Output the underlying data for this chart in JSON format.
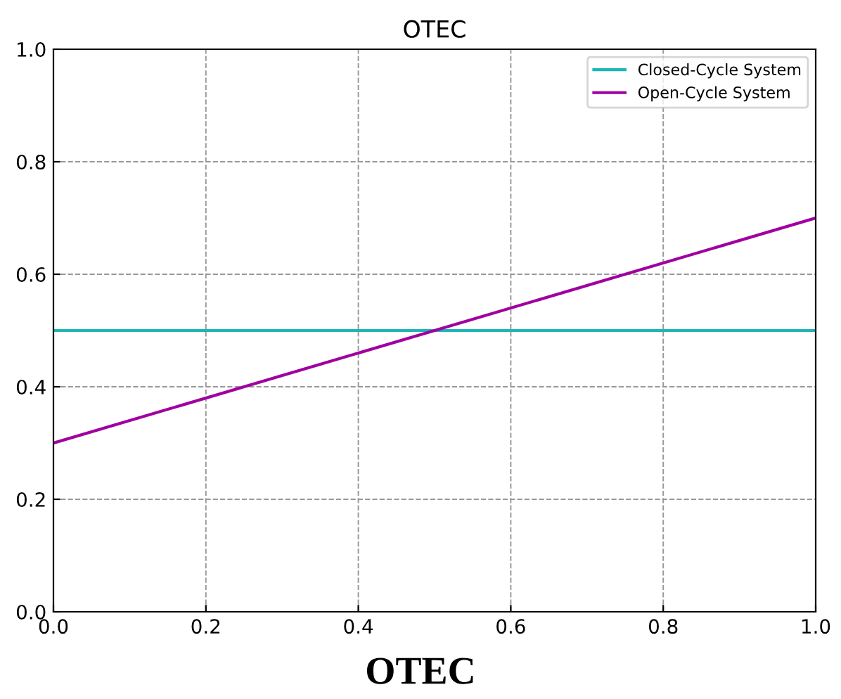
{
  "chart_data": {
    "type": "line",
    "title": "OTEC",
    "x": [
      0,
      1
    ],
    "series": [
      {
        "name": "Closed-Cycle System",
        "color": "#1fb5b5",
        "values": [
          0.5,
          0.5
        ]
      },
      {
        "name": "Open-Cycle System",
        "color": "#a000a0",
        "values": [
          0.3,
          0.7
        ]
      }
    ],
    "xlim": [
      0,
      1
    ],
    "ylim": [
      0,
      1
    ],
    "xticks": [
      {
        "value": 0,
        "label": "0.0"
      },
      0.2,
      0.4,
      0.6,
      0.8,
      {
        "value": 1,
        "label": "1.0"
      }
    ],
    "yticks": [
      {
        "value": 0,
        "label": "0.0"
      },
      0.2,
      0.4,
      0.6,
      0.8,
      {
        "value": 1,
        "label": "1.0"
      }
    ],
    "grid": true,
    "legend": "top right",
    "line_style": "solid",
    "marker": "none",
    "annotations": [
      "OTEC"
    ]
  }
}
